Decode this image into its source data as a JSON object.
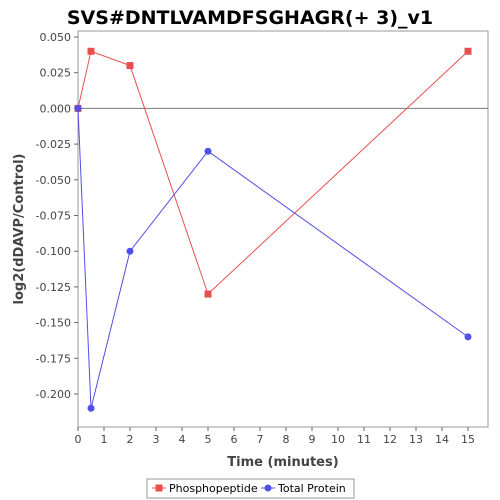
{
  "chart_data": {
    "type": "line",
    "title": "SVS#DNTLVAMDFSGHAGR(+ 3)_v1",
    "xlabel": "Time (minutes)",
    "ylabel": "log2(dDAVP/Control)",
    "xlim": [
      0,
      15.5
    ],
    "ylim": [
      -0.22,
      0.05
    ],
    "xticks": [
      0,
      1,
      2,
      3,
      4,
      5,
      6,
      7,
      8,
      9,
      10,
      11,
      12,
      13,
      14,
      15
    ],
    "yticks": [
      0.05,
      0.025,
      0.0,
      -0.025,
      -0.05,
      -0.075,
      -0.1,
      -0.125,
      -0.15,
      -0.175,
      -0.2
    ],
    "ytick_labels": [
      "0.050",
      "0.025",
      "0.000",
      "-0.025",
      "-0.050",
      "-0.075",
      "-0.100",
      "-0.125",
      "-0.150",
      "-0.175",
      "-0.200"
    ],
    "zero_line": true,
    "grid": false,
    "legend_position": "bottom",
    "series": [
      {
        "name": "Phosphopeptide",
        "color": "#e8504f",
        "marker": "square",
        "x": [
          0,
          0.5,
          2,
          5,
          15
        ],
        "y": [
          0.0,
          0.04,
          0.03,
          -0.13,
          0.04
        ]
      },
      {
        "name": "Total Protein",
        "color": "#5050e8",
        "marker": "circle",
        "x": [
          0,
          0.5,
          2,
          5,
          15
        ],
        "y": [
          0.0,
          -0.21,
          -0.1,
          -0.03,
          -0.16
        ]
      }
    ]
  }
}
